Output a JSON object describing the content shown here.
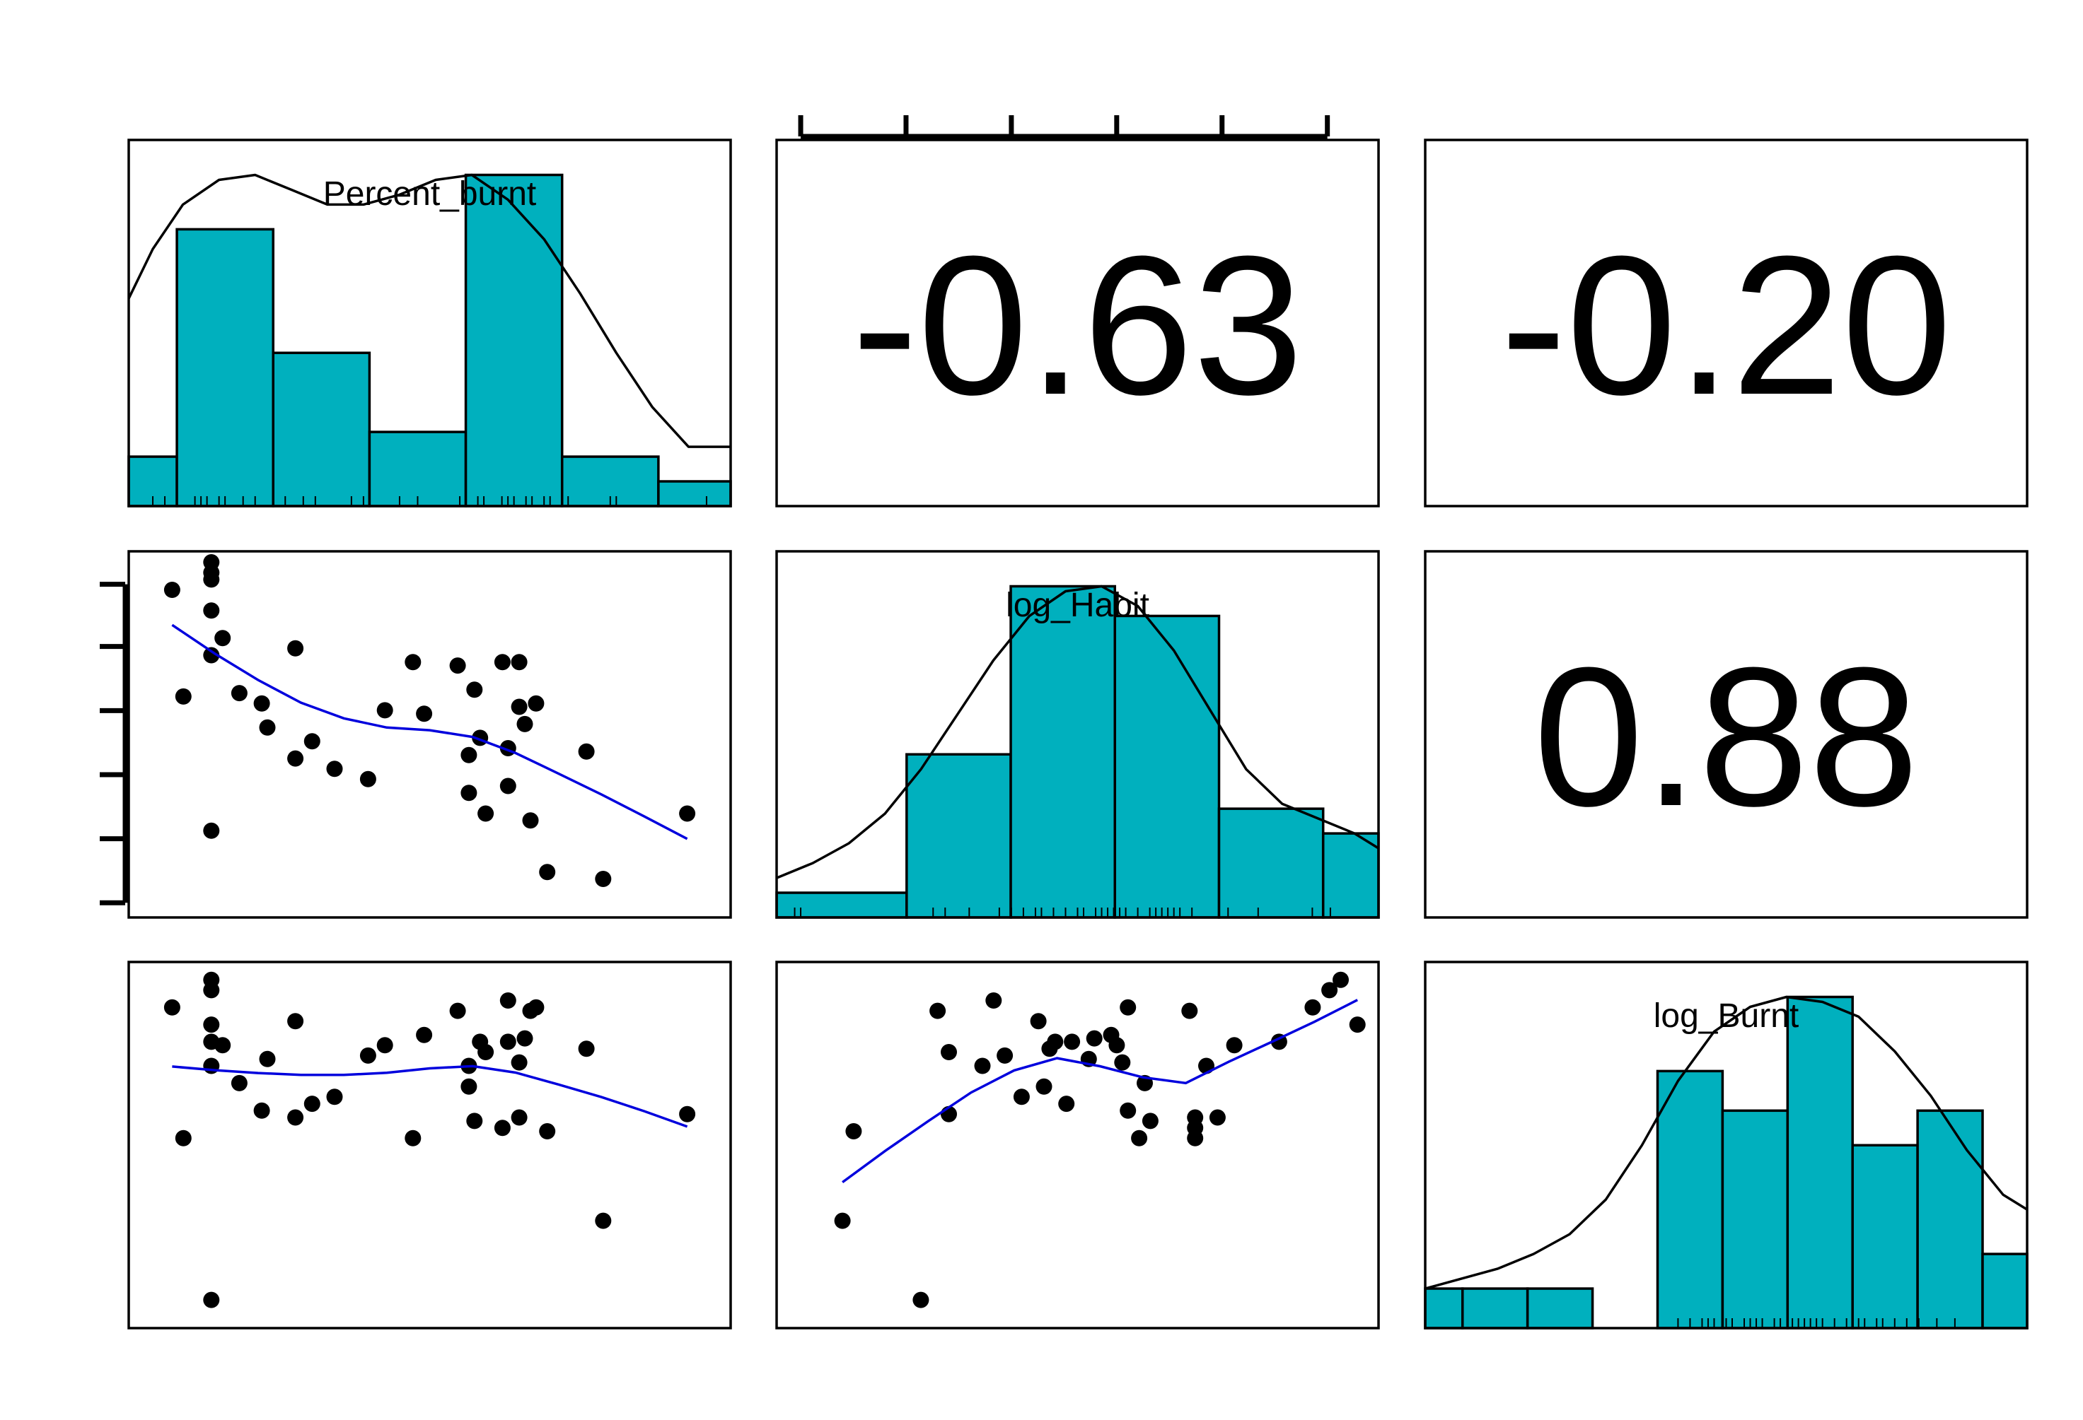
{
  "chart_data": {
    "type": "scatter-matrix",
    "variables": [
      "Percent_burnt",
      "log_Habit",
      "log_Burnt"
    ],
    "colors": {
      "bar": "#00b0be",
      "smooth": "#0000dd",
      "point": "#000000",
      "density": "#000000"
    },
    "correlations": [
      {
        "row": 0,
        "col": 1,
        "text": "-0.63"
      },
      {
        "row": 0,
        "col": 2,
        "text": "-0.20"
      },
      {
        "row": 1,
        "col": 2,
        "text": "0.88"
      }
    ],
    "histograms": {
      "Percent_burnt": {
        "range": [
          0,
          1
        ],
        "bins": [
          {
            "x0": 0.0,
            "x1": 0.08,
            "h": 0.1
          },
          {
            "x0": 0.08,
            "x1": 0.24,
            "h": 0.56
          },
          {
            "x0": 0.24,
            "x1": 0.4,
            "h": 0.31
          },
          {
            "x0": 0.4,
            "x1": 0.56,
            "h": 0.15
          },
          {
            "x0": 0.56,
            "x1": 0.72,
            "h": 0.67
          },
          {
            "x0": 0.72,
            "x1": 0.88,
            "h": 0.1
          },
          {
            "x0": 0.88,
            "x1": 1.0,
            "h": 0.05
          }
        ],
        "density": [
          [
            0,
            0.42
          ],
          [
            0.04,
            0.52
          ],
          [
            0.09,
            0.61
          ],
          [
            0.15,
            0.66
          ],
          [
            0.21,
            0.67
          ],
          [
            0.27,
            0.64
          ],
          [
            0.33,
            0.61
          ],
          [
            0.39,
            0.61
          ],
          [
            0.45,
            0.63
          ],
          [
            0.51,
            0.66
          ],
          [
            0.57,
            0.67
          ],
          [
            0.63,
            0.62
          ],
          [
            0.69,
            0.54
          ],
          [
            0.75,
            0.43
          ],
          [
            0.81,
            0.31
          ],
          [
            0.87,
            0.2
          ],
          [
            0.93,
            0.12
          ],
          [
            1.0,
            0.12
          ]
        ],
        "rug": [
          0.04,
          0.06,
          0.11,
          0.12,
          0.13,
          0.15,
          0.16,
          0.19,
          0.21,
          0.26,
          0.29,
          0.31,
          0.37,
          0.39,
          0.45,
          0.48,
          0.55,
          0.56,
          0.58,
          0.59,
          0.62,
          0.63,
          0.64,
          0.66,
          0.67,
          0.69,
          0.7,
          0.73,
          0.8,
          0.81,
          0.96
        ]
      },
      "log_Habit": {
        "range": [
          0,
          1
        ],
        "bins": [
          {
            "x0": 0.0,
            "x1": 0.216,
            "h": 0.05
          },
          {
            "x0": 0.216,
            "x1": 0.389,
            "h": 0.33
          },
          {
            "x0": 0.389,
            "x1": 0.562,
            "h": 0.67
          },
          {
            "x0": 0.562,
            "x1": 0.735,
            "h": 0.61
          },
          {
            "x0": 0.735,
            "x1": 0.908,
            "h": 0.22
          },
          {
            "x0": 0.908,
            "x1": 1.0,
            "h": 0.17
          }
        ],
        "density": [
          [
            0,
            0.08
          ],
          [
            0.06,
            0.11
          ],
          [
            0.12,
            0.15
          ],
          [
            0.18,
            0.21
          ],
          [
            0.24,
            0.3
          ],
          [
            0.3,
            0.41
          ],
          [
            0.36,
            0.52
          ],
          [
            0.42,
            0.61
          ],
          [
            0.48,
            0.66
          ],
          [
            0.54,
            0.67
          ],
          [
            0.6,
            0.63
          ],
          [
            0.66,
            0.54
          ],
          [
            0.72,
            0.42
          ],
          [
            0.78,
            0.3
          ],
          [
            0.84,
            0.23
          ],
          [
            0.9,
            0.2
          ],
          [
            0.96,
            0.17
          ],
          [
            1.0,
            0.14
          ]
        ],
        "rug": [
          0.03,
          0.04,
          0.26,
          0.28,
          0.32,
          0.37,
          0.39,
          0.41,
          0.43,
          0.44,
          0.46,
          0.48,
          0.5,
          0.51,
          0.53,
          0.54,
          0.55,
          0.56,
          0.57,
          0.58,
          0.6,
          0.62,
          0.63,
          0.64,
          0.65,
          0.66,
          0.67,
          0.69,
          0.75,
          0.8,
          0.89,
          0.92
        ]
      },
      "log_Burnt": {
        "range": [
          0,
          1
        ],
        "bins": [
          {
            "x0": 0.0,
            "x1": 0.062,
            "h": 0.08
          },
          {
            "x0": 0.062,
            "x1": 0.17,
            "h": 0.08
          },
          {
            "x0": 0.17,
            "x1": 0.278,
            "h": 0.08
          },
          {
            "x0": 0.278,
            "x1": 0.386,
            "h": 0.0
          },
          {
            "x0": 0.386,
            "x1": 0.494,
            "h": 0.52
          },
          {
            "x0": 0.494,
            "x1": 0.602,
            "h": 0.44
          },
          {
            "x0": 0.602,
            "x1": 0.71,
            "h": 0.67
          },
          {
            "x0": 0.71,
            "x1": 0.818,
            "h": 0.37
          },
          {
            "x0": 0.818,
            "x1": 0.926,
            "h": 0.44
          },
          {
            "x0": 0.926,
            "x1": 1.0,
            "h": 0.15
          }
        ],
        "density": [
          [
            0,
            0.08
          ],
          [
            0.06,
            0.1
          ],
          [
            0.12,
            0.12
          ],
          [
            0.18,
            0.15
          ],
          [
            0.24,
            0.19
          ],
          [
            0.3,
            0.26
          ],
          [
            0.36,
            0.37
          ],
          [
            0.42,
            0.5
          ],
          [
            0.48,
            0.6
          ],
          [
            0.54,
            0.65
          ],
          [
            0.6,
            0.67
          ],
          [
            0.66,
            0.66
          ],
          [
            0.72,
            0.63
          ],
          [
            0.78,
            0.56
          ],
          [
            0.84,
            0.47
          ],
          [
            0.9,
            0.36
          ],
          [
            0.96,
            0.27
          ],
          [
            1.0,
            0.24
          ]
        ],
        "rug": [
          0.42,
          0.44,
          0.46,
          0.47,
          0.48,
          0.5,
          0.51,
          0.53,
          0.54,
          0.55,
          0.56,
          0.58,
          0.59,
          0.61,
          0.62,
          0.63,
          0.64,
          0.65,
          0.66,
          0.68,
          0.7,
          0.71,
          0.72,
          0.73,
          0.75,
          0.76,
          0.78,
          0.8,
          0.82,
          0.85,
          0.88
        ]
      }
    },
    "scatter": {
      "note_scale": "all variables scaled 0-1 within each panel",
      "Percent_burnt": [
        0.04,
        0.06,
        0.11,
        0.11,
        0.11,
        0.11,
        0.11,
        0.11,
        0.13,
        0.16,
        0.2,
        0.21,
        0.26,
        0.26,
        0.29,
        0.33,
        0.39,
        0.42,
        0.47,
        0.49,
        0.55,
        0.57,
        0.57,
        0.58,
        0.59,
        0.6,
        0.63,
        0.64,
        0.64,
        0.66,
        0.66,
        0.67,
        0.68,
        0.69,
        0.71,
        0.78,
        0.81,
        0.96
      ],
      "log_Habit": [
        0.92,
        0.61,
        0.97,
        0.95,
        0.86,
        0.73,
        0.22,
        1.0,
        0.78,
        0.62,
        0.59,
        0.52,
        0.75,
        0.43,
        0.48,
        0.4,
        0.37,
        0.57,
        0.71,
        0.56,
        0.7,
        0.33,
        0.44,
        0.63,
        0.49,
        0.27,
        0.71,
        0.46,
        0.35,
        0.71,
        0.58,
        0.53,
        0.25,
        0.59,
        0.1,
        0.45,
        0.08,
        0.27
      ],
      "log_Burnt": [
        0.9,
        0.52,
        0.98,
        0.95,
        0.8,
        0.73,
        0.05,
        0.85,
        0.79,
        0.68,
        0.6,
        0.75,
        0.58,
        0.86,
        0.62,
        0.64,
        0.76,
        0.79,
        0.52,
        0.82,
        0.89,
        0.73,
        0.67,
        0.57,
        0.8,
        0.77,
        0.55,
        0.8,
        0.92,
        0.58,
        0.74,
        0.81,
        0.89,
        0.9,
        0.54,
        0.78,
        0.28,
        0.59
      ]
    }
  }
}
